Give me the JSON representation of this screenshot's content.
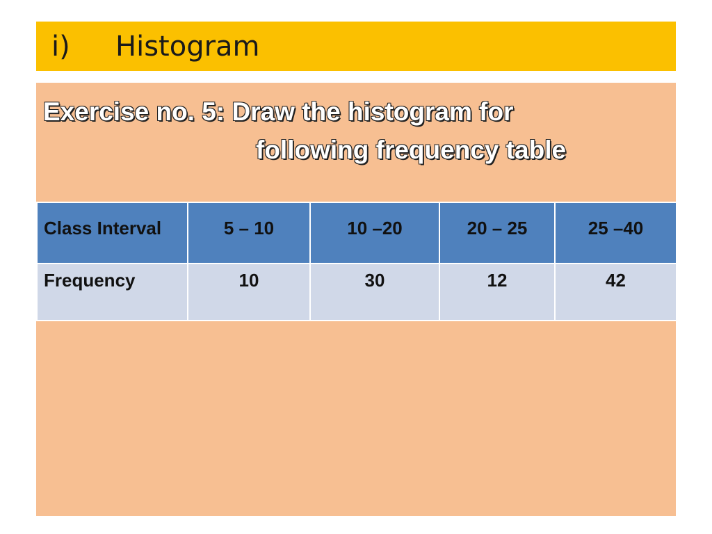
{
  "title": {
    "number": "i)",
    "text": "Histogram"
  },
  "exercise": {
    "line1": "Exercise no. 5: Draw the histogram for",
    "line2": "following frequency table"
  },
  "table": {
    "header": {
      "label": "Class Interval",
      "cells": [
        "5 – 10",
        "10 –20",
        "20 – 25",
        "25 –40"
      ]
    },
    "row": {
      "label": "Frequency",
      "cells": [
        "10",
        "30",
        "12",
        "42"
      ]
    }
  },
  "colors": {
    "title_bar": "#fbc000",
    "content_bg": "#f7bf92",
    "table_header": "#4f81bd",
    "table_row": "#d0d8e8"
  }
}
